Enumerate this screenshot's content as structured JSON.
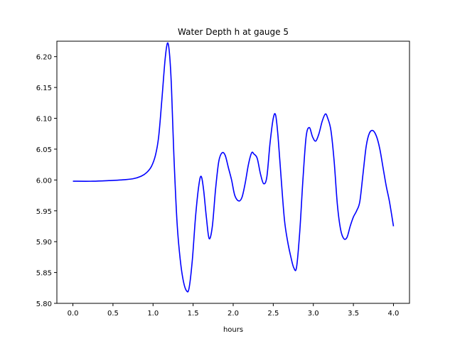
{
  "chart_data": {
    "type": "line",
    "title": "Water Depth h at gauge 5",
    "xlabel": "hours",
    "ylabel": "",
    "xlim": [
      -0.2,
      4.2
    ],
    "ylim": [
      5.8,
      6.225
    ],
    "xticks": [
      0.0,
      0.5,
      1.0,
      1.5,
      2.0,
      2.5,
      3.0,
      3.5,
      4.0
    ],
    "xtick_labels": [
      "0.0",
      "0.5",
      "1.0",
      "1.5",
      "2.0",
      "2.5",
      "3.0",
      "3.5",
      "4.0"
    ],
    "yticks": [
      5.8,
      5.85,
      5.9,
      5.95,
      6.0,
      6.05,
      6.1,
      6.15,
      6.2
    ],
    "ytick_labels": [
      "5.80",
      "5.85",
      "5.90",
      "5.95",
      "6.00",
      "6.05",
      "6.10",
      "6.15",
      "6.20"
    ],
    "grid": false,
    "legend": "none",
    "series": [
      {
        "color": "#0000ff",
        "x": [
          0.0,
          0.25,
          0.45,
          0.6,
          0.75,
          0.85,
          0.92,
          0.98,
          1.03,
          1.07,
          1.11,
          1.15,
          1.18,
          1.205,
          1.23,
          1.26,
          1.3,
          1.34,
          1.38,
          1.42,
          1.45,
          1.49,
          1.53,
          1.57,
          1.6,
          1.63,
          1.665,
          1.7,
          1.74,
          1.78,
          1.82,
          1.86,
          1.9,
          1.94,
          1.98,
          2.02,
          2.07,
          2.11,
          2.15,
          2.19,
          2.23,
          2.26,
          2.3,
          2.34,
          2.38,
          2.42,
          2.46,
          2.5,
          2.53,
          2.56,
          2.6,
          2.64,
          2.68,
          2.72,
          2.755,
          2.79,
          2.83,
          2.87,
          2.91,
          2.95,
          2.99,
          3.03,
          3.07,
          3.11,
          3.15,
          3.18,
          3.22,
          3.26,
          3.3,
          3.34,
          3.38,
          3.42,
          3.46,
          3.5,
          3.54,
          3.58,
          3.62,
          3.66,
          3.7,
          3.745,
          3.79,
          3.83,
          3.87,
          3.91,
          3.95,
          4.0
        ],
        "y": [
          5.998,
          5.998,
          5.999,
          6.0,
          6.002,
          6.006,
          6.012,
          6.022,
          6.04,
          6.07,
          6.13,
          6.195,
          6.222,
          6.205,
          6.15,
          6.04,
          5.93,
          5.87,
          5.835,
          5.82,
          5.825,
          5.87,
          5.94,
          5.99,
          6.006,
          5.985,
          5.94,
          5.905,
          5.925,
          5.985,
          6.03,
          6.044,
          6.04,
          6.02,
          6.0,
          5.975,
          5.966,
          5.972,
          5.995,
          6.025,
          6.044,
          6.042,
          6.035,
          6.01,
          5.994,
          6.005,
          6.06,
          6.1,
          6.105,
          6.07,
          6.0,
          5.935,
          5.9,
          5.875,
          5.858,
          5.858,
          5.915,
          6.0,
          6.07,
          6.085,
          6.07,
          6.063,
          6.075,
          6.095,
          6.107,
          6.1,
          6.08,
          6.03,
          5.96,
          5.92,
          5.905,
          5.907,
          5.925,
          5.94,
          5.95,
          5.965,
          6.01,
          6.055,
          6.076,
          6.08,
          6.07,
          6.05,
          6.02,
          5.99,
          5.965,
          5.925
        ]
      }
    ]
  }
}
